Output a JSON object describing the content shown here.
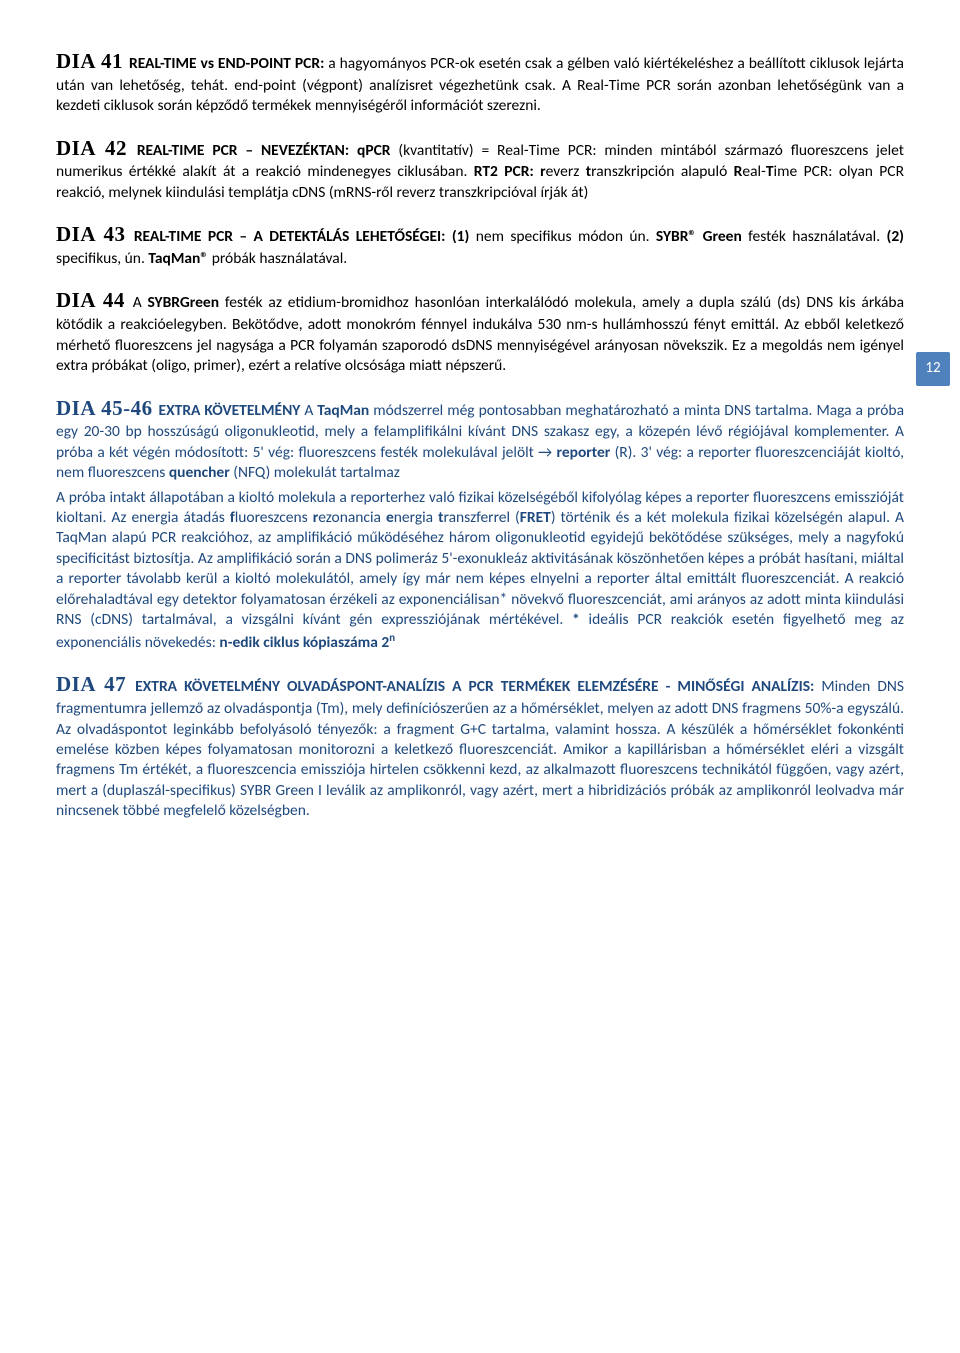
{
  "page_number": "12",
  "colors": {
    "body_text": "#000000",
    "blue_text": "#1f497d",
    "badge_bg": "#4f81bd",
    "badge_text": "#ffffff",
    "background": "#ffffff"
  },
  "typography": {
    "body_font": "Calibri",
    "body_size_pt": 12,
    "dia_head_font": "Georgia",
    "dia_head_size_pt": 16,
    "dia_head_weight": 900
  },
  "dia41": {
    "head": "DIA 41",
    "title": " REAL-TIME vs END-POINT PCR:",
    "body": " a hagyományos PCR-ok esetén csak a gélben való kiértékeléshez a beállított ciklusok lejárta után van lehetőség, tehát. end-point (végpont) analízisret végezhetünk csak. A Real-Time PCR során azonban lehetőségünk van a kezdeti ciklusok során képződő termékek mennyiségéről információt szerezni."
  },
  "dia42": {
    "head": "DIA 42",
    "title": " REAL-TIME PCR – NEVEZÉKTAN: qPCR",
    "body1": " (kvantitatív) = Real-Time PCR: minden mintából származó fluoreszcens jelet numerikus értékké alakít át a reakció mindenegyes ciklusában. ",
    "rt2": "RT2 PCR: ",
    "body2_a": "r",
    "body2_b": "everz ",
    "body2_c": "t",
    "body2_d": "ranszkripción alapuló ",
    "body2_e": "R",
    "body2_f": "eal-",
    "body2_g": "T",
    "body2_h": "ime PCR: olyan PCR reakció, melynek kiindulási templátja cDNS (mRNS-ről reverz transzkripcióval írják át)"
  },
  "dia43": {
    "head": "DIA 43",
    "title": " REAL-TIME PCR – A DETEKTÁLÁS LEHETŐSÉGEI: (1)",
    "body1": " nem specifikus módon ún. ",
    "sybr": "SYBR® Green",
    "body2": " festék használatával. ",
    "two": "(2)",
    "body3": " specifikus, ún. ",
    "taq": "TaqMan®",
    "body4": " próbák használatával."
  },
  "dia44": {
    "head": "DIA 44",
    "lead_a": " A ",
    "sybr": "SYBRGreen",
    "body": " festék az etidium-bromidhoz hasonlóan interkalálódó molekula, amely a dupla szálú (ds) DNS kis árkába kötődik a reakcióelegyben. Bekötődve, adott monokróm fénnyel indukálva 530 nm-s hullámhosszú fényt emittál. Az ebből keletkező mérhető fluoreszcens jel nagysága a PCR folyamán szaporodó dsDNS mennyiségével arányosan növekszik. Ez a megoldás nem igényel extra próbákat (oligo, primer), ezért a relatíve olcsósága miatt népszerű."
  },
  "dia45_46": {
    "head": "DIA 45-46",
    "extra": " EXTRA KÖVETELMÉNY ",
    "body1_a": "A ",
    "taq": "TaqMan",
    "body1_b": " módszerrel még pontosabban meghatározható a minta DNS tartalma. Maga a próba egy 20-30 bp hosszúságú oligonukleotid, mely a felamplifikálni kívánt DNS szakasz egy, a közepén lévő régiójával komplementer.  A próba a két végén módosított: 5' vég: fluoreszcens festék molekulával jelölt → ",
    "reporter": "reporter",
    "body1_c": " (R). 3' vég: a reporter fluoreszcenciáját kioltó, nem fluoreszcens ",
    "quencher": "quencher",
    "body1_d": " (NFQ) molekulát tartalmaz",
    "body2_a": "A próba intakt állapotában a kioltó molekula a reporterhez való fizikai közelségéből kifolyólag képes a reporter fluoreszcens emisszióját kioltani. Az energia átadás ",
    "f": "f",
    "body2_b": "luoreszcens ",
    "r": "r",
    "body2_c": "ezonancia ",
    "e": "e",
    "body2_d": "nergia ",
    "t": "t",
    "body2_e": "ranszferrel (",
    "fret": "FRET",
    "body2_f": ") történik és a két molekula fizikai közelségén alapul. A TaqMan alapú PCR reakcióhoz, az amplifikáció működéséhez három oligonukleotid egyidejű bekötődése szükséges, mely a nagyfokú specificitást biztosítja. Az amplifikáció során a DNS polimeráz 5'-exonukleáz aktivitásának köszönhetően képes a próbát hasítani, miáltal a reporter távolabb kerül a kioltó molekulától, amely így már nem képes elnyelni a reporter által emittált fluoreszcenciát. A reakció előrehaladtával egy detektor folyamatosan érzékeli az exponenciálisan* növekvő fluoreszcenciát, ami arányos az adott minta kiindulási RNS (cDNS) tartalmával, a vizsgálni kívánt gén expressziójának mértékével. ",
    "star": "*",
    "body2_g": " ideális PCR reakciók esetén figyelhető meg az exponenciális növekedés: ",
    "formula": "n-edik ciklus kópiaszáma 2",
    "sup": "n"
  },
  "dia47": {
    "head": "DIA 47",
    "extra": " EXTRA KÖVETELMÉNY OLVADÁSPONT-ANALÍZIS A PCR TERMÉKEK ELEMZÉSÉRE - MINŐSÉGI ANALÍZIS:",
    "body": " Minden DNS fragmentumra jellemző az olvadáspontja (Tm), mely definíciószerűen az a hőmérséklet, melyen az adott DNS fragmens 50%-a egyszálú. Az olvadáspontot leginkább befolyásoló tényezők: a fragment G+C tartalma, valamint hossza. A készülék a hőmérséklet fokonkénti emelése közben képes folyamatosan monitorozni a keletkező fluoreszcenciát. Amikor a kapillárisban a hőmérséklet eléri a vizsgált fragmens Tm értékét, a fluoreszcencia emissziója hirtelen csökkenni kezd, az alkalmazott fluoreszcens technikától függően, vagy azért, mert a (duplaszál-specifikus) SYBR Green I leválik az amplikonról, vagy azért, mert a hibridizációs próbák az amplikonról leolvadva már nincsenek többé megfelelő közelségben."
  }
}
